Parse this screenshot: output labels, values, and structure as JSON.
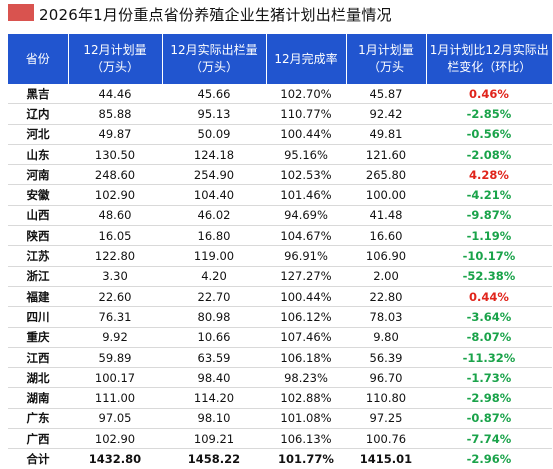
{
  "title": "2026年1月份重点省份养殖企业生猪计划出栏量情况",
  "colors": {
    "header_bg": "#2155cf",
    "increase": "#e0241b",
    "decrease": "#1aa34a",
    "title_block": "#d9534f"
  },
  "table": {
    "headers": [
      [
        "省份"
      ],
      [
        "12月计划量",
        "（万头）"
      ],
      [
        "12月实际出栏量",
        "（万头）"
      ],
      [
        "12月完成率"
      ],
      [
        "1月计划量",
        "（万头"
      ],
      [
        "1月计划比12月实际出",
        "栏变化（环比）"
      ]
    ],
    "rows": [
      {
        "province": "黑吉",
        "dec_plan": "44.46",
        "dec_actual": "45.66",
        "dec_rate": "102.70%",
        "jan_plan": "45.87",
        "mom": "0.46%",
        "dir": "pos"
      },
      {
        "province": "辽内",
        "dec_plan": "85.88",
        "dec_actual": "95.13",
        "dec_rate": "110.77%",
        "jan_plan": "92.42",
        "mom": "-2.85%",
        "dir": "neg"
      },
      {
        "province": "河北",
        "dec_plan": "49.87",
        "dec_actual": "50.09",
        "dec_rate": "100.44%",
        "jan_plan": "49.81",
        "mom": "-0.56%",
        "dir": "neg"
      },
      {
        "province": "山东",
        "dec_plan": "130.50",
        "dec_actual": "124.18",
        "dec_rate": "95.16%",
        "jan_plan": "121.60",
        "mom": "-2.08%",
        "dir": "neg"
      },
      {
        "province": "河南",
        "dec_plan": "248.60",
        "dec_actual": "254.90",
        "dec_rate": "102.53%",
        "jan_plan": "265.80",
        "mom": "4.28%",
        "dir": "pos"
      },
      {
        "province": "安徽",
        "dec_plan": "102.90",
        "dec_actual": "104.40",
        "dec_rate": "101.46%",
        "jan_plan": "100.00",
        "mom": "-4.21%",
        "dir": "neg"
      },
      {
        "province": "山西",
        "dec_plan": "48.60",
        "dec_actual": "46.02",
        "dec_rate": "94.69%",
        "jan_plan": "41.48",
        "mom": "-9.87%",
        "dir": "neg"
      },
      {
        "province": "陕西",
        "dec_plan": "16.05",
        "dec_actual": "16.80",
        "dec_rate": "104.67%",
        "jan_plan": "16.60",
        "mom": "-1.19%",
        "dir": "neg"
      },
      {
        "province": "江苏",
        "dec_plan": "122.80",
        "dec_actual": "119.00",
        "dec_rate": "96.91%",
        "jan_plan": "106.90",
        "mom": "-10.17%",
        "dir": "neg"
      },
      {
        "province": "浙江",
        "dec_plan": "3.30",
        "dec_actual": "4.20",
        "dec_rate": "127.27%",
        "jan_plan": "2.00",
        "mom": "-52.38%",
        "dir": "neg"
      },
      {
        "province": "福建",
        "dec_plan": "22.60",
        "dec_actual": "22.70",
        "dec_rate": "100.44%",
        "jan_plan": "22.80",
        "mom": "0.44%",
        "dir": "pos"
      },
      {
        "province": "四川",
        "dec_plan": "76.31",
        "dec_actual": "80.98",
        "dec_rate": "106.12%",
        "jan_plan": "78.03",
        "mom": "-3.64%",
        "dir": "neg"
      },
      {
        "province": "重庆",
        "dec_plan": "9.92",
        "dec_actual": "10.66",
        "dec_rate": "107.46%",
        "jan_plan": "9.80",
        "mom": "-8.07%",
        "dir": "neg"
      },
      {
        "province": "江西",
        "dec_plan": "59.89",
        "dec_actual": "63.59",
        "dec_rate": "106.18%",
        "jan_plan": "56.39",
        "mom": "-11.32%",
        "dir": "neg"
      },
      {
        "province": "湖北",
        "dec_plan": "100.17",
        "dec_actual": "98.40",
        "dec_rate": "98.23%",
        "jan_plan": "96.70",
        "mom": "-1.73%",
        "dir": "neg"
      },
      {
        "province": "湖南",
        "dec_plan": "111.00",
        "dec_actual": "114.20",
        "dec_rate": "102.88%",
        "jan_plan": "110.80",
        "mom": "-2.98%",
        "dir": "neg"
      },
      {
        "province": "广东",
        "dec_plan": "97.05",
        "dec_actual": "98.10",
        "dec_rate": "101.08%",
        "jan_plan": "97.25",
        "mom": "-0.87%",
        "dir": "neg"
      },
      {
        "province": "广西",
        "dec_plan": "102.90",
        "dec_actual": "109.21",
        "dec_rate": "106.13%",
        "jan_plan": "100.76",
        "mom": "-7.74%",
        "dir": "neg"
      },
      {
        "province": "合计",
        "dec_plan": "1432.80",
        "dec_actual": "1458.22",
        "dec_rate": "101.77%",
        "jan_plan": "1415.01",
        "mom": "-2.96%",
        "dir": "neg",
        "total": true
      }
    ]
  }
}
